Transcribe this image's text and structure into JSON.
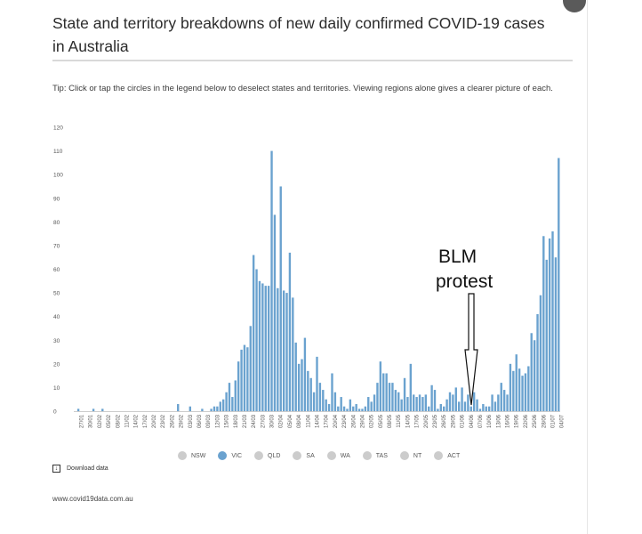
{
  "page": {
    "title": "State and territory breakdowns of new daily confirmed COVID-19 cases in Australia",
    "tip": "Tip: Click or tap the circles in the legend below to deselect states and territories. Viewing regions alone gives a clearer picture of each.",
    "download_label": "Download data",
    "source": "www.covid19data.com.au",
    "annotation_line1": "BLM",
    "annotation_line2": "protest"
  },
  "colors": {
    "bar": "#6aa2cf",
    "legend_active": "#6aa2cf",
    "legend_inactive": "#cccccc"
  },
  "legend": [
    {
      "label": "NSW",
      "active": false
    },
    {
      "label": "VIC",
      "active": true
    },
    {
      "label": "QLD",
      "active": false
    },
    {
      "label": "SA",
      "active": false
    },
    {
      "label": "WA",
      "active": false
    },
    {
      "label": "TAS",
      "active": false
    },
    {
      "label": "NT",
      "active": false
    },
    {
      "label": "ACT",
      "active": false
    }
  ],
  "chart_data": {
    "type": "bar",
    "title": "State and territory breakdowns of new daily confirmed COVID-19 cases in Australia",
    "xlabel": "",
    "ylabel": "",
    "ylim": [
      0,
      120
    ],
    "yticks": [
      0,
      10,
      20,
      30,
      40,
      50,
      60,
      70,
      80,
      90,
      100,
      110,
      120
    ],
    "grid": false,
    "legend_position": "bottom",
    "start_date": "2020-01-25",
    "x_tick_labels": [
      "27/01",
      "30/01",
      "02/02",
      "05/02",
      "08/02",
      "11/02",
      "14/02",
      "17/02",
      "20/02",
      "23/02",
      "26/02",
      "29/02",
      "03/03",
      "06/03",
      "09/03",
      "12/03",
      "15/03",
      "18/03",
      "21/03",
      "24/03",
      "27/03",
      "30/03",
      "02/04",
      "05/04",
      "08/04",
      "11/04",
      "14/04",
      "17/04",
      "20/04",
      "23/04",
      "26/04",
      "29/04",
      "02/05",
      "05/05",
      "08/05",
      "11/05",
      "14/05",
      "17/05",
      "20/05",
      "23/05",
      "26/05",
      "29/05",
      "01/06",
      "04/06",
      "07/06",
      "10/06",
      "13/06",
      "16/06",
      "19/06",
      "22/06",
      "25/06",
      "28/06",
      "01/07",
      "04/07"
    ],
    "series": [
      {
        "name": "VIC",
        "values": [
          0,
          1,
          0,
          0,
          0,
          0,
          1,
          0,
          0,
          1,
          0,
          0,
          0,
          0,
          0,
          0,
          0,
          0,
          0,
          0,
          0,
          0,
          0,
          0,
          0,
          0,
          0,
          0,
          0,
          0,
          0,
          0,
          0,
          0,
          3,
          0,
          0,
          0,
          2,
          0,
          0,
          0,
          1,
          0,
          0,
          1,
          2,
          2,
          4,
          5,
          8,
          12,
          6,
          13,
          21,
          26,
          28,
          27,
          36,
          66,
          60,
          55,
          54,
          53,
          53,
          110,
          83,
          52,
          95,
          51,
          50,
          67,
          48,
          29,
          20,
          22,
          31,
          17,
          14,
          8,
          23,
          12,
          9,
          5,
          3,
          16,
          8,
          2,
          6,
          2,
          1,
          5,
          2,
          3,
          1,
          1,
          2,
          6,
          4,
          7,
          12,
          21,
          16,
          16,
          12,
          12,
          9,
          8,
          5,
          14,
          6,
          20,
          7,
          6,
          7,
          6,
          7,
          2,
          11,
          9,
          1,
          3,
          2,
          5,
          8,
          7,
          10,
          4,
          10,
          4,
          7,
          2,
          8,
          5,
          1,
          3,
          2,
          2,
          7,
          4,
          7,
          12,
          9,
          7,
          20,
          17,
          24,
          18,
          15,
          16,
          19,
          33,
          30,
          41,
          49,
          74,
          64,
          73,
          76,
          65,
          107
        ]
      }
    ]
  }
}
